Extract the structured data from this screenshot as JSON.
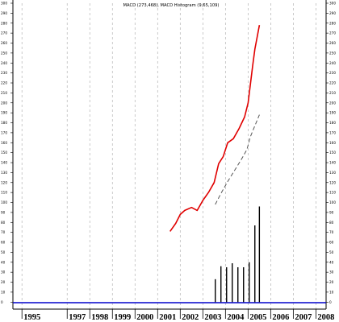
{
  "chart_data": {
    "type": "line",
    "title": "MACD (273,468), MACD Histogram (9,65,109)",
    "xlabel": "",
    "ylabel": "",
    "xlim": [
      1994.6,
      2008.45
    ],
    "ylim": [
      -3,
      300
    ],
    "y_ticks": [
      0,
      10,
      20,
      30,
      40,
      50,
      60,
      70,
      80,
      90,
      100,
      110,
      120,
      130,
      140,
      150,
      160,
      170,
      180,
      190,
      200,
      210,
      220,
      230,
      240,
      250,
      260,
      270,
      280,
      290,
      300
    ],
    "x_ticks": [
      "1995",
      "1997",
      "1998",
      "1999",
      "2000",
      "2001",
      "2002",
      "2003",
      "2004",
      "2005",
      "2006",
      "2007",
      "2008"
    ],
    "x_tick_positions": [
      1995,
      1997,
      1998,
      1999,
      2000,
      2001,
      2002,
      2003,
      2004,
      2005,
      2006,
      2007,
      2008
    ],
    "grid": true,
    "legend": "none",
    "colors": {
      "macd_line": "#e00000",
      "signal_line": "#555555",
      "histogram": "#000000",
      "baseline": "#0000cc",
      "grid": "#b4b4b4"
    },
    "series": [
      {
        "kind": "line",
        "color": "#e00000",
        "x": [
          2001.55,
          2001.8,
          2002.0,
          2002.2,
          2002.5,
          2002.75,
          2003.0,
          2003.25,
          2003.5,
          2003.7,
          2003.9,
          2004.1,
          2004.35,
          2004.6,
          2004.85,
          2005.0,
          2005.2,
          2005.3,
          2005.5
        ],
        "y": [
          71,
          79,
          88,
          92,
          95,
          92,
          102,
          110,
          120,
          139,
          146,
          160,
          164,
          174,
          186,
          200,
          237,
          254,
          278
        ]
      },
      {
        "kind": "dashed",
        "color": "#555555",
        "x": [
          2003.55,
          2003.8,
          2004.1,
          2004.4,
          2004.7,
          2004.95,
          2005.1,
          2005.3,
          2005.5
        ],
        "y": [
          98,
          109,
          121,
          132,
          143,
          153,
          166,
          177,
          188
        ]
      },
      {
        "kind": "histogram",
        "color": "#000000",
        "x": [
          2003.55,
          2003.8,
          2004.05,
          2004.3,
          2004.55,
          2004.8,
          2005.05,
          2005.3,
          2005.5
        ],
        "y": [
          23,
          36,
          35,
          39,
          35,
          35,
          40,
          77,
          96
        ]
      }
    ]
  }
}
